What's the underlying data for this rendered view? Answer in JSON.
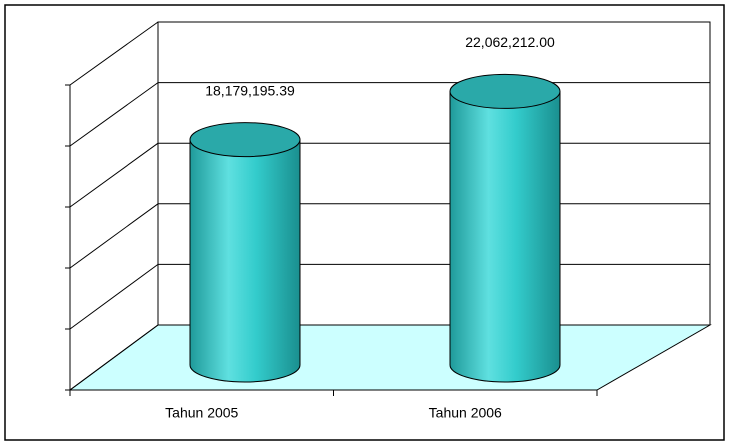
{
  "chart_data": {
    "type": "bar",
    "categories": [
      "Tahun 2005",
      "Tahun 2006"
    ],
    "values": [
      18179195.39,
      22062212.0
    ],
    "value_labels": [
      "18,179,195.39",
      "22,062,212.00"
    ],
    "color": "#33cccc",
    "ylim": [
      0,
      25000000
    ],
    "yticks": [
      0,
      5000000,
      10000000,
      15000000,
      20000000,
      25000000
    ],
    "grid": true
  }
}
